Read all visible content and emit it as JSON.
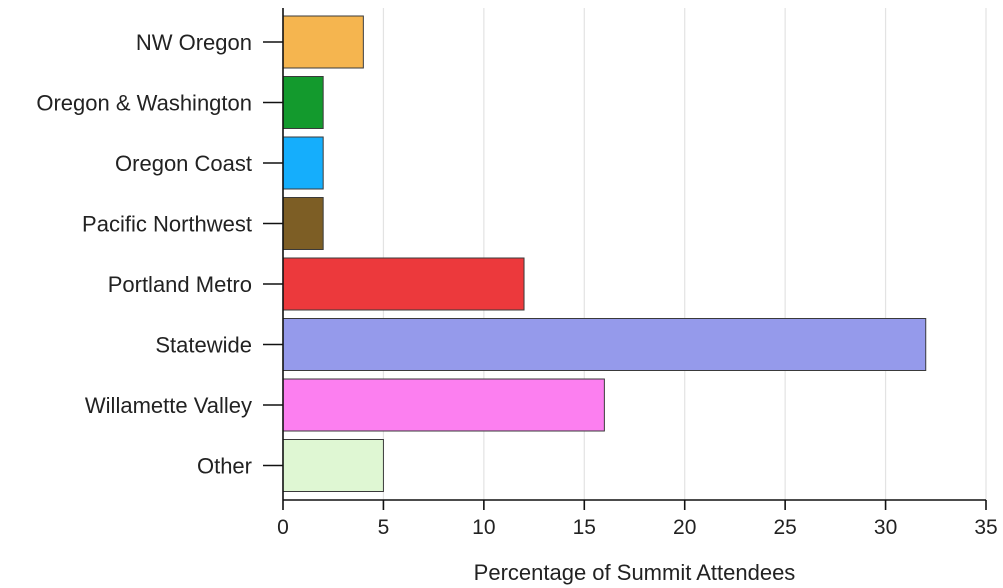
{
  "chart_data": {
    "type": "bar",
    "orientation": "horizontal",
    "categories": [
      "NW Oregon",
      "Oregon & Washington",
      "Oregon Coast",
      "Pacific Northwest",
      "Portland Metro",
      "Statewide",
      "Willamette Valley",
      "Other"
    ],
    "values": [
      4,
      2,
      2,
      2,
      12,
      32,
      16,
      5
    ],
    "colors": [
      "#f5b54f",
      "#139a2d",
      "#15aefc",
      "#7d5e25",
      "#ec393c",
      "#959aeb",
      "#fc7ff0",
      "#dff7d3"
    ],
    "xlabel": "Percentage of Summit Attendees",
    "ylabel": "",
    "xlim": [
      0,
      35
    ],
    "xticks": [
      0,
      5,
      10,
      15,
      20,
      25,
      30,
      35
    ],
    "grid": "vertical",
    "legend": "none"
  }
}
